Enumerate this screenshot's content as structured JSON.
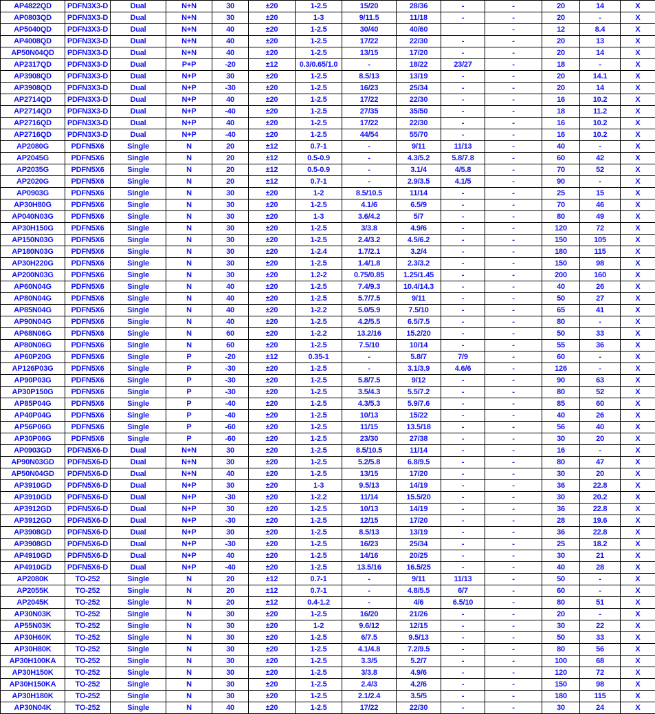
{
  "text_color": "#1010f0",
  "rows": [
    [
      "AP4822QD",
      "PDFN3X3-D",
      "Dual",
      "N+N",
      "30",
      "±20",
      "1-2.5",
      "15/20",
      "28/36",
      "-",
      "-",
      "20",
      "14",
      "X"
    ],
    [
      "AP0803QD",
      "PDFN3X3-D",
      "Dual",
      "N+N",
      "30",
      "±20",
      "1-3",
      "9/11.5",
      "11/18",
      "-",
      "-",
      "20",
      "-",
      "X"
    ],
    [
      "AP5040QD",
      "PDFN3X3-D",
      "Dual",
      "N+N",
      "40",
      "±20",
      "1-2.5",
      "30/40",
      "40/60",
      "",
      "-",
      "12",
      "8.4",
      "X"
    ],
    [
      "AP4008QD",
      "PDFN3X3-D",
      "Dual",
      "N+N",
      "40",
      "±20",
      "1-2.5",
      "17/22",
      "22/30",
      "-",
      "-",
      "20",
      "13",
      "X"
    ],
    [
      "AP50N04QD",
      "PDFN3X3-D",
      "Dual",
      "N+N",
      "40",
      "±20",
      "1-2.5",
      "13/15",
      "17/20",
      "-",
      "-",
      "20",
      "14",
      "X"
    ],
    [
      "AP2317QD",
      "PDFN3X3-D",
      "Dual",
      "P+P",
      "-20",
      "±12",
      "0.3/0.65/1.0",
      "-",
      "18/22",
      "23/27",
      "-",
      "18",
      "-",
      "X"
    ],
    [
      "AP3908QD",
      "PDFN3X3-D",
      "Dual",
      "N+P",
      "30",
      "±20",
      "1-2.5",
      "8.5/13",
      "13/19",
      "-",
      "-",
      "20",
      "14.1",
      "X"
    ],
    [
      "AP3908QD",
      "PDFN3X3-D",
      "Dual",
      "N+P",
      "-30",
      "±20",
      "1-2.5",
      "16/23",
      "25/34",
      "-",
      "-",
      "20",
      "14",
      "X"
    ],
    [
      "AP2714QD",
      "PDFN3X3-D",
      "Dual",
      "N+P",
      "40",
      "±20",
      "1-2.5",
      "17/22",
      "22/30",
      "-",
      "-",
      "16",
      "10.2",
      "X"
    ],
    [
      "AP2714QD",
      "PDFN3X3-D",
      "Dual",
      "N+P",
      "-40",
      "±20",
      "1-2.5",
      "27/35",
      "35/50",
      "-",
      "-",
      "18",
      "11.2",
      "X"
    ],
    [
      "AP2716QD",
      "PDFN3X3-D",
      "Dual",
      "N+P",
      "40",
      "±20",
      "1-2.5",
      "17/22",
      "22/30",
      "-",
      "-",
      "16",
      "10.2",
      "X"
    ],
    [
      "AP2716QD",
      "PDFN3X3-D",
      "Dual",
      "N+P",
      "-40",
      "±20",
      "1-2.5",
      "44/54",
      "55/70",
      "-",
      "-",
      "16",
      "10.2",
      "X"
    ],
    [
      "AP2080G",
      "PDFN5X6",
      "Single",
      "N",
      "20",
      "±12",
      "0.7-1",
      "-",
      "9/11",
      "11/13",
      "-",
      "40",
      "-",
      "X"
    ],
    [
      "AP2045G",
      "PDFN5X6",
      "Single",
      "N",
      "20",
      "±12",
      "0.5-0.9",
      "-",
      "4.3/5.2",
      "5.8/7.8",
      "-",
      "60",
      "42",
      "X"
    ],
    [
      "AP2035G",
      "PDFN5X6",
      "Single",
      "N",
      "20",
      "±12",
      "0.5-0.9",
      "-",
      "3.1/4",
      "4/5.8",
      "-",
      "70",
      "52",
      "X"
    ],
    [
      "AP2020G",
      "PDFN5X6",
      "Single",
      "N",
      "20",
      "±12",
      "0.7-1",
      "-",
      "2.9/3.5",
      "4.1/5",
      "-",
      "90",
      "-",
      "X"
    ],
    [
      "AP0903G",
      "PDFN5X6",
      "Single",
      "N",
      "30",
      "±20",
      "1-2",
      "8.5/10.5",
      "11/14",
      "-",
      "-",
      "25",
      "15",
      "X"
    ],
    [
      "AP30H80G",
      "PDFN5X6",
      "Single",
      "N",
      "30",
      "±20",
      "1-2.5",
      "4.1/6",
      "6.5/9",
      "-",
      "-",
      "70",
      "46",
      "X"
    ],
    [
      "AP040N03G",
      "PDFN5X6",
      "Single",
      "N",
      "30",
      "±20",
      "1-3",
      "3.6/4.2",
      "5/7",
      "-",
      "-",
      "80",
      "49",
      "X"
    ],
    [
      "AP30H150G",
      "PDFN5X6",
      "Single",
      "N",
      "30",
      "±20",
      "1-2.5",
      "3/3.8",
      "4.9/6",
      "-",
      "-",
      "120",
      "72",
      "X"
    ],
    [
      "AP150N03G",
      "PDFN5X6",
      "Single",
      "N",
      "30",
      "±20",
      "1-2.5",
      "2.4/3.2",
      "4.5/6.2",
      "-",
      "-",
      "150",
      "105",
      "X"
    ],
    [
      "AP180N03G",
      "PDFN5X6",
      "Single",
      "N",
      "30",
      "±20",
      "1-2.4",
      "1.7/2.1",
      "3.2/4",
      "-",
      "-",
      "180",
      "115",
      "X"
    ],
    [
      "AP30H220G",
      "PDFN5X6",
      "Single",
      "N",
      "30",
      "±20",
      "1-2.5",
      "1.4/1.8",
      "2.3/3.2",
      "-",
      "-",
      "150",
      "98",
      "X"
    ],
    [
      "AP200N03G",
      "PDFN5X6",
      "Single",
      "N",
      "30",
      "±20",
      "1.2-2",
      "0.75/0.85",
      "1.25/1.45",
      "-",
      "-",
      "200",
      "160",
      "X"
    ],
    [
      "AP60N04G",
      "PDFN5X6",
      "Single",
      "N",
      "40",
      "±20",
      "1-2.5",
      "7.4/9.3",
      "10.4/14.3",
      "-",
      "-",
      "40",
      "26",
      "X"
    ],
    [
      "AP80N04G",
      "PDFN5X6",
      "Single",
      "N",
      "40",
      "±20",
      "1-2.5",
      "5.7/7.5",
      "9/11",
      "-",
      "-",
      "50",
      "27",
      "X"
    ],
    [
      "AP85N04G",
      "PDFN5X6",
      "Single",
      "N",
      "40",
      "±20",
      "1-2.2",
      "5.0/5.9",
      "7.5/10",
      "-",
      "-",
      "65",
      "41",
      "X"
    ],
    [
      "AP90N04G",
      "PDFN5X6",
      "Single",
      "N",
      "40",
      "±20",
      "1-2.5",
      "4.2/5.5",
      "6.5/7.5",
      "-",
      "-",
      "80",
      "-",
      "X"
    ],
    [
      "AP68N06G",
      "PDFN5X6",
      "Single",
      "N",
      "60",
      "±20",
      "1-2.2",
      "13.2/16",
      "15.2/20",
      "-",
      "-",
      "50",
      "33",
      "X"
    ],
    [
      "AP80N06G",
      "PDFN5X6",
      "Single",
      "N",
      "60",
      "±20",
      "1-2.5",
      "7.5/10",
      "10/14",
      "-",
      "-",
      "55",
      "36",
      "X"
    ],
    [
      "AP60P20G",
      "PDFN5X6",
      "Single",
      "P",
      "-20",
      "±12",
      "0.35-1",
      "-",
      "5.8/7",
      "7/9",
      "-",
      "60",
      "-",
      "X"
    ],
    [
      "AP126P03G",
      "PDFN5X6",
      "Single",
      "P",
      "-30",
      "±20",
      "1-2.5",
      "-",
      "3.1/3.9",
      "4.6/6",
      "-",
      "126",
      "-",
      "X"
    ],
    [
      "AP90P03G",
      "PDFN5X6",
      "Single",
      "P",
      "-30",
      "±20",
      "1-2.5",
      "5.8/7.5",
      "9/12",
      "-",
      "-",
      "90",
      "63",
      "X"
    ],
    [
      "AP30P150G",
      "PDFN5X6",
      "Single",
      "P",
      "-30",
      "±20",
      "1-2.5",
      "3.5/4.3",
      "5.5/7.2",
      "-",
      "-",
      "80",
      "52",
      "X"
    ],
    [
      "AP85P04G",
      "PDFN5X6",
      "Single",
      "P",
      "-40",
      "±20",
      "1-2.5",
      "4.3/5.3",
      "5.9/7.6",
      "-",
      "-",
      "85",
      "60",
      "X"
    ],
    [
      "AP40P04G",
      "PDFN5X6",
      "Single",
      "P",
      "-40",
      "±20",
      "1-2.5",
      "10/13",
      "15/22",
      "-",
      "-",
      "40",
      "26",
      "X"
    ],
    [
      "AP56P06G",
      "PDFN5X6",
      "Single",
      "P",
      "-60",
      "±20",
      "1-2.5",
      "11/15",
      "13.5/18",
      "-",
      "-",
      "56",
      "40",
      "X"
    ],
    [
      "AP30P06G",
      "PDFN5X6",
      "Single",
      "P",
      "-60",
      "±20",
      "1-2.5",
      "23/30",
      "27/38",
      "-",
      "-",
      "30",
      "20",
      "X"
    ],
    [
      "AP0903GD",
      "PDFN5X6-D",
      "Dual",
      "N+N",
      "30",
      "±20",
      "1-2.5",
      "8.5/10.5",
      "11/14",
      "-",
      "-",
      "16",
      "-",
      "X"
    ],
    [
      "AP90N03GD",
      "PDFN5X6-D",
      "Dual",
      "N+N",
      "30",
      "±20",
      "1-2.5",
      "5.2/5.8",
      "6.8/9.5",
      "-",
      "-",
      "80",
      "47",
      "X"
    ],
    [
      "AP50N04GD",
      "PDFN5X6-D",
      "Dual",
      "N+N",
      "40",
      "±20",
      "1-2.5",
      "13/15",
      "17/20",
      "-",
      "-",
      "30",
      "20",
      "X"
    ],
    [
      "AP3910GD",
      "PDFN5X6-D",
      "Dual",
      "N+P",
      "30",
      "±20",
      "1-3",
      "9.5/13",
      "14/19",
      "-",
      "-",
      "36",
      "22.8",
      "X"
    ],
    [
      "AP3910GD",
      "PDFN5X6-D",
      "Dual",
      "N+P",
      "-30",
      "±20",
      "1-2.2",
      "11/14",
      "15.5/20",
      "-",
      "-",
      "30",
      "20.2",
      "X"
    ],
    [
      "AP3912GD",
      "PDFN5X6-D",
      "Dual",
      "N+P",
      "30",
      "±20",
      "1-2.5",
      "10/13",
      "14/19",
      "-",
      "-",
      "36",
      "22.8",
      "X"
    ],
    [
      "AP3912GD",
      "PDFN5X6-D",
      "Dual",
      "N+P",
      "-30",
      "±20",
      "1-2.5",
      "12/15",
      "17/20",
      "-",
      "-",
      "28",
      "19.6",
      "X"
    ],
    [
      "AP3908GD",
      "PDFN5X6-D",
      "Dual",
      "N+P",
      "30",
      "±20",
      "1-2.5",
      "8.5/13",
      "13/19",
      "-",
      "-",
      "36",
      "22.8",
      "X"
    ],
    [
      "AP3908GD",
      "PDFN5X6-D",
      "Dual",
      "N+P",
      "-30",
      "±20",
      "1-2.5",
      "16/23",
      "25/34",
      "-",
      "-",
      "25",
      "18.2",
      "X"
    ],
    [
      "AP4910GD",
      "PDFN5X6-D",
      "Dual",
      "N+P",
      "40",
      "±20",
      "1-2.5",
      "14/16",
      "20/25",
      "-",
      "-",
      "30",
      "21",
      "X"
    ],
    [
      "AP4910GD",
      "PDFN5X6-D",
      "Dual",
      "N+P",
      "-40",
      "±20",
      "1-2.5",
      "13.5/16",
      "16.5/25",
      "-",
      "-",
      "40",
      "28",
      "X"
    ],
    [
      "AP2080K",
      "TO-252",
      "Single",
      "N",
      "20",
      "±12",
      "0.7-1",
      "-",
      "9/11",
      "11/13",
      "-",
      "50",
      "-",
      "X"
    ],
    [
      "AP2055K",
      "TO-252",
      "Single",
      "N",
      "20",
      "±12",
      "0.7-1",
      "-",
      "4.8/5.5",
      "6/7",
      "-",
      "60",
      "-",
      "X"
    ],
    [
      "AP2045K",
      "TO-252",
      "Single",
      "N",
      "20",
      "±12",
      "0.4-1.2",
      "-",
      "4/6",
      "6.5/10",
      "-",
      "80",
      "51",
      "X"
    ],
    [
      "AP30N03K",
      "TO-252",
      "Single",
      "N",
      "30",
      "±20",
      "1-2.5",
      "16/20",
      "21/26",
      "-",
      "-",
      "20",
      "-",
      "X"
    ],
    [
      "AP55N03K",
      "TO-252",
      "Single",
      "N",
      "30",
      "±20",
      "1-2",
      "9.6/12",
      "12/15",
      "-",
      "-",
      "30",
      "22",
      "X"
    ],
    [
      "AP30H60K",
      "TO-252",
      "Single",
      "N",
      "30",
      "±20",
      "1-2.5",
      "6/7.5",
      "9.5/13",
      "-",
      "-",
      "50",
      "33",
      "X"
    ],
    [
      "AP30H80K",
      "TO-252",
      "Single",
      "N",
      "30",
      "±20",
      "1-2.5",
      "4.1/4.8",
      "7.2/9.5",
      "-",
      "-",
      "80",
      "56",
      "X"
    ],
    [
      "AP30H100KA",
      "TO-252",
      "Single",
      "N",
      "30",
      "±20",
      "1-2.5",
      "3.3/5",
      "5.2/7",
      "-",
      "-",
      "100",
      "68",
      "X"
    ],
    [
      "AP30H150K",
      "TO-252",
      "Single",
      "N",
      "30",
      "±20",
      "1-2.5",
      "3/3.8",
      "4.9/6",
      "-",
      "-",
      "120",
      "72",
      "X"
    ],
    [
      "AP30H150KA",
      "TO-252",
      "Single",
      "N",
      "30",
      "±20",
      "1-2.5",
      "2.4/3",
      "4.2/6",
      "-",
      "-",
      "150",
      "98",
      "X"
    ],
    [
      "AP30H180K",
      "TO-252",
      "Single",
      "N",
      "30",
      "±20",
      "1-2.5",
      "2.1/2.4",
      "3.5/5",
      "-",
      "-",
      "180",
      "115",
      "X"
    ],
    [
      "AP30N04K",
      "TO-252",
      "Single",
      "N",
      "40",
      "±20",
      "1-2.5",
      "17/22",
      "22/30",
      "-",
      "-",
      "30",
      "24",
      "X"
    ]
  ]
}
